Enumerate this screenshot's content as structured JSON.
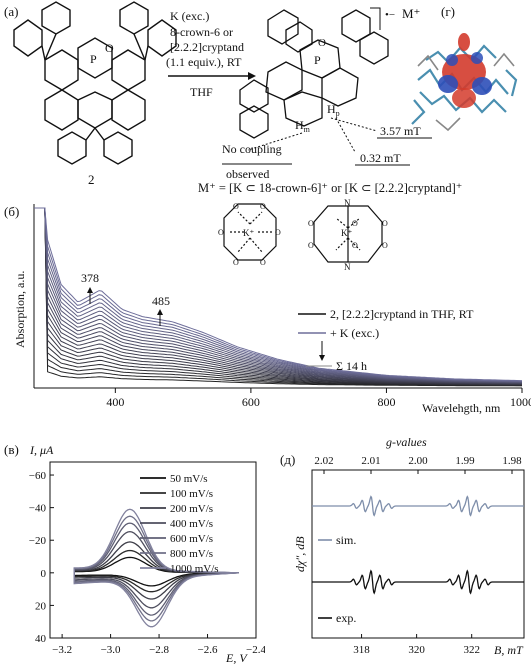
{
  "panel_a": {
    "label": "(а)",
    "compound_number": "2",
    "reagent_lines": [
      "K (exc.)",
      "8-crown-6 or",
      "[2.2.2]cryptand",
      "(1.1 equiv.), RT"
    ],
    "solvent": "THF",
    "charge": "•−",
    "counterion": "M⁺",
    "atom_P": "P",
    "atom_O": "O",
    "Hm": "H",
    "Hm_sub": "m",
    "Hp": "H",
    "Hp_sub": "p",
    "coupling_3_57": "3.57 mT",
    "coupling_0_32": "0.32 mT",
    "no_coupling": [
      "No coupling",
      "observed"
    ],
    "m_definition": "M⁺ = [K ⊂ 18-crown-6]⁺ or [K ⊂ [2.2.2]cryptand]⁺",
    "K_plus": "K⁺",
    "N": "N",
    "O": "O"
  },
  "panel_g": {
    "label": "(г)"
  },
  "chart_data": [
    {
      "id": "b",
      "type": "line",
      "panel_label": "(б)",
      "xlabel": "Wavelehgth, nm",
      "ylabel": "Absorption, a.u.",
      "x_ticks": [
        400,
        600,
        800,
        1000
      ],
      "xlim": [
        280,
        1000
      ],
      "peak_labels": [
        {
          "text": "378",
          "x": 378
        },
        {
          "text": "485",
          "x": 485
        }
      ],
      "legend": [
        "2, [2.2.2]cryptand in THF, RT",
        "+ K (exc.)",
        "Σ 14 h"
      ],
      "series_count": 22,
      "colors": {
        "first": "#222222",
        "last": "#6e6e9a"
      },
      "spectral_shape": {
        "x": [
          290,
          300,
          320,
          345,
          378,
          410,
          440,
          485,
          530,
          580,
          640,
          700,
          800,
          900,
          1000
        ],
        "envelope": [
          1.0,
          0.8,
          0.55,
          0.45,
          0.52,
          0.41,
          0.37,
          0.34,
          0.28,
          0.2,
          0.13,
          0.08,
          0.04,
          0.02,
          0.01
        ]
      }
    },
    {
      "id": "v",
      "type": "line",
      "panel_label": "(в)",
      "xlabel": "E, V",
      "ylabel": "I, μA",
      "x_ticks": [
        -3.2,
        -3.0,
        -2.8,
        -2.6,
        -2.4
      ],
      "y_ticks": [
        -60,
        -40,
        -20,
        0,
        20,
        40
      ],
      "xlim": [
        -3.25,
        -2.4
      ],
      "ylim": [
        -68,
        40
      ],
      "y_inverted": true,
      "series": [
        {
          "name": "50 mV/s",
          "color": "#111111",
          "peak": 9
        },
        {
          "name": "100 mV/s",
          "color": "#2b2b2b",
          "peak": 13
        },
        {
          "name": "200 mV/s",
          "color": "#3d3d48",
          "peak": 18
        },
        {
          "name": "400 mV/s",
          "color": "#4e4e5e",
          "peak": 24
        },
        {
          "name": "600 mV/s",
          "color": "#5f5f74",
          "peak": 29
        },
        {
          "name": "800 mV/s",
          "color": "#707088",
          "peak": 33
        },
        {
          "name": "1000 mV/s",
          "color": "#82829e",
          "peak": 37
        }
      ]
    },
    {
      "id": "d",
      "type": "line",
      "panel_label": "(д)",
      "xlabel": "B, mT",
      "ylabel": "dχ″, dB",
      "x_ticks": [
        318,
        320,
        322
      ],
      "xlim": [
        316.2,
        323.9
      ],
      "top_axis_label": "g-values",
      "top_ticks": [
        "2.02",
        "2.01",
        "2.00",
        "1.99",
        "1.98"
      ],
      "series": [
        {
          "name": "sim.",
          "color": "#7e8eaa"
        },
        {
          "name": "exp.",
          "color": "#111111"
        }
      ],
      "line_centers": [
        318.4,
        321.9
      ]
    }
  ]
}
